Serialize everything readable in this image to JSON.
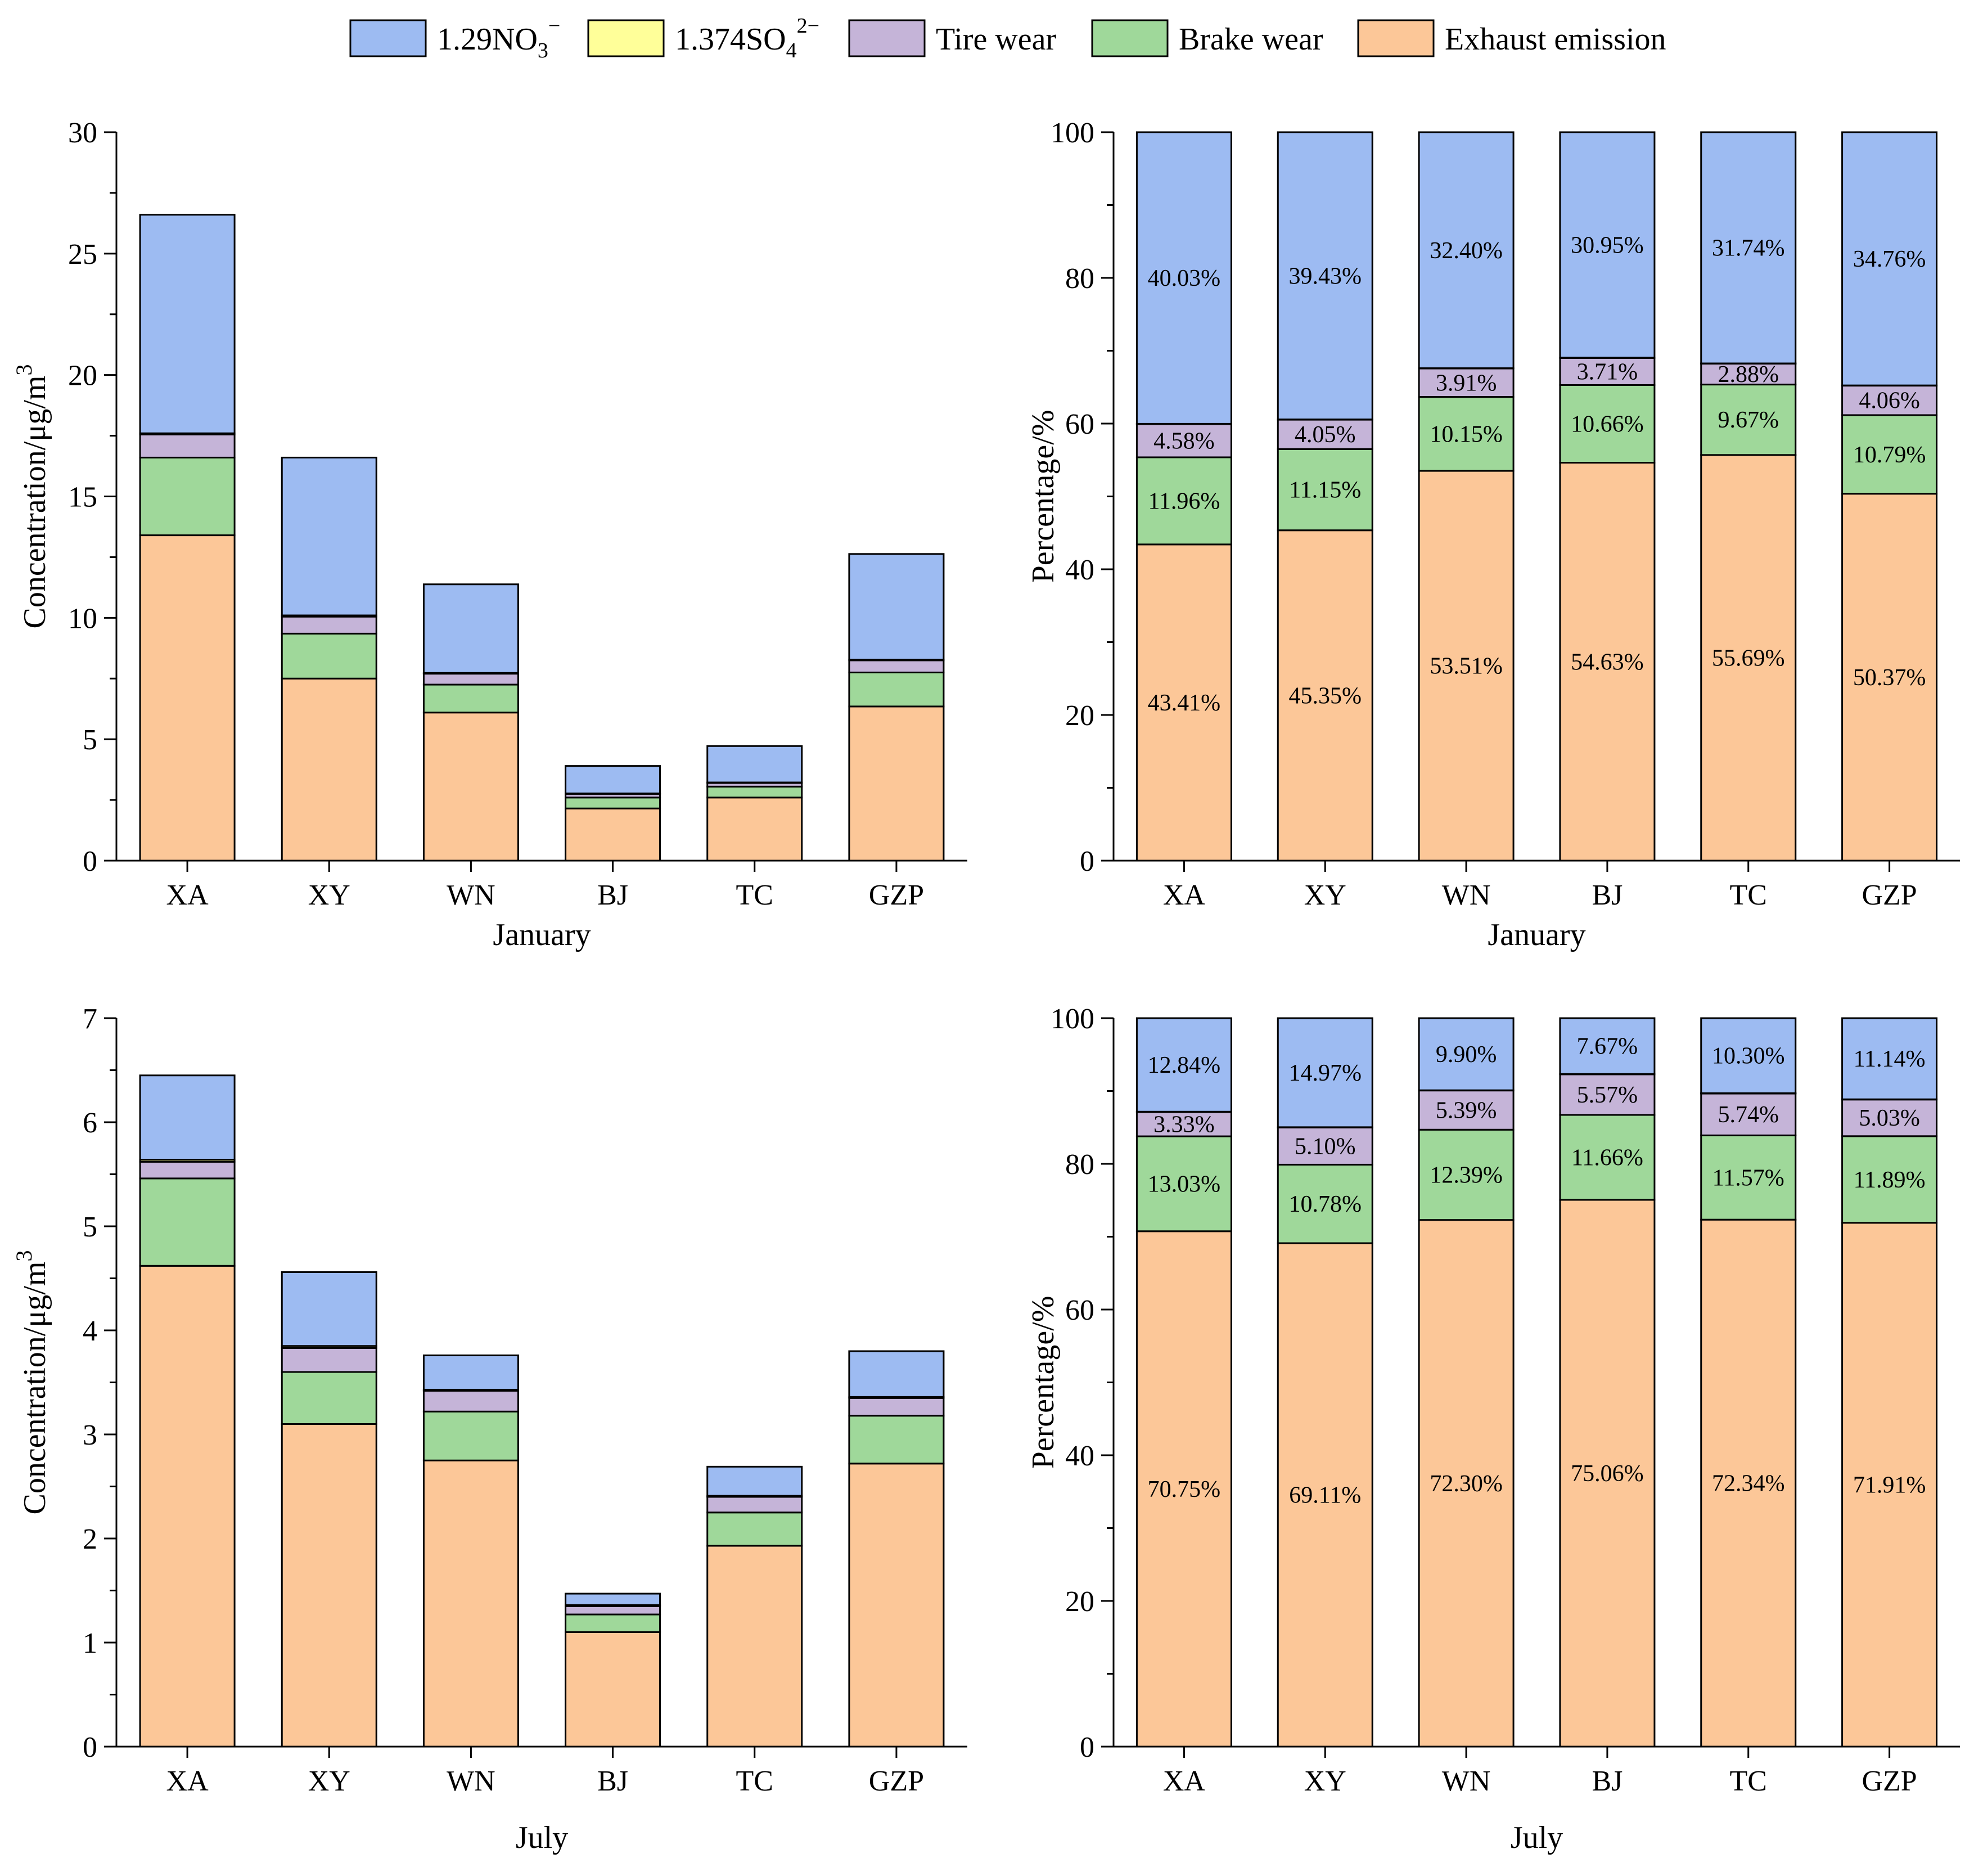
{
  "legend": {
    "items": [
      {
        "key": "no3",
        "label_main": "1.29NO",
        "label_sub": "3",
        "label_sup": "−",
        "color": "#9dbbf2"
      },
      {
        "key": "so4",
        "label_main": "1.374SO",
        "label_sub": "4",
        "label_sup": "2−",
        "color": "#ffff99"
      },
      {
        "key": "tire",
        "label_main": "Tire wear",
        "label_sub": "",
        "label_sup": "",
        "color": "#c5b4d8"
      },
      {
        "key": "brake",
        "label_main": "Brake wear",
        "label_sub": "",
        "label_sup": "",
        "color": "#9fd89a"
      },
      {
        "key": "exhaust",
        "label_main": "Exhaust emission",
        "label_sub": "",
        "label_sup": "",
        "color": "#fcc798"
      }
    ]
  },
  "chart_data": [
    {
      "type": "bar",
      "stacked": true,
      "panel": "jan-concentration",
      "xlabel": "January",
      "ylabel": "Concentration/μg/m",
      "ylabel_sup": "3",
      "ylim": [
        0,
        30
      ],
      "yticks": [
        "0",
        "5",
        "10",
        "15",
        "20",
        "25",
        "30"
      ],
      "categories": [
        "XA",
        "XY",
        "WN",
        "BJ",
        "TC",
        "GZP"
      ],
      "series": [
        {
          "key": "exhaust",
          "name": "Exhaust emission",
          "values": [
            13.4,
            7.5,
            6.1,
            2.15,
            2.6,
            6.35
          ]
        },
        {
          "key": "brake",
          "name": "Brake wear",
          "values": [
            3.2,
            1.85,
            1.15,
            0.45,
            0.45,
            1.4
          ]
        },
        {
          "key": "tire",
          "name": "Tire wear",
          "values": [
            0.95,
            0.7,
            0.45,
            0.15,
            0.15,
            0.5
          ]
        },
        {
          "key": "so4",
          "name": "1.374SO4 2−",
          "values": [
            0.05,
            0.05,
            0.03,
            0.02,
            0.02,
            0.03
          ]
        },
        {
          "key": "no3",
          "name": "1.29NO3 −",
          "values": [
            9.0,
            6.5,
            3.65,
            1.13,
            1.5,
            4.35
          ]
        }
      ]
    },
    {
      "type": "bar",
      "stacked": true,
      "panel": "jan-percentage",
      "xlabel": "January",
      "ylabel": "Percentage/%",
      "ylim": [
        0,
        100
      ],
      "yticks": [
        "0",
        "20",
        "40",
        "60",
        "80",
        "100"
      ],
      "categories": [
        "XA",
        "XY",
        "WN",
        "BJ",
        "TC",
        "GZP"
      ],
      "series": [
        {
          "key": "exhaust",
          "name": "Exhaust emission",
          "values": [
            43.41,
            45.35,
            53.51,
            54.63,
            55.69,
            50.37
          ],
          "labels": [
            "43.41%",
            "45.35%",
            "53.51%",
            "54.63%",
            "55.69%",
            "50.37%"
          ]
        },
        {
          "key": "brake",
          "name": "Brake wear",
          "values": [
            11.96,
            11.15,
            10.15,
            10.66,
            9.67,
            10.79
          ],
          "labels": [
            "11.96%",
            "11.15%",
            "10.15%",
            "10.66%",
            "9.67%",
            "10.79%"
          ]
        },
        {
          "key": "tire",
          "name": "Tire wear",
          "values": [
            4.58,
            4.05,
            3.91,
            3.71,
            2.88,
            4.06
          ],
          "labels": [
            "4.58%",
            "4.05%",
            "3.91%",
            "3.71%",
            "2.88%",
            "4.06%"
          ]
        },
        {
          "key": "so4",
          "name": "1.374SO4 2−",
          "values": [
            0.02,
            0.02,
            0.03,
            0.05,
            0.02,
            0.02
          ],
          "labels": null
        },
        {
          "key": "no3",
          "name": "1.29NO3 −",
          "values": [
            40.03,
            39.43,
            32.4,
            30.95,
            31.74,
            34.76
          ],
          "labels": [
            "40.03%",
            "39.43%",
            "32.40%",
            "30.95%",
            "31.74%",
            "34.76%"
          ]
        }
      ]
    },
    {
      "type": "bar",
      "stacked": true,
      "panel": "jul-concentration",
      "xlabel": "July",
      "ylabel": "Concentration/μg/m",
      "ylabel_sup": "3",
      "ylim": [
        0,
        7
      ],
      "yticks": [
        "0",
        "1",
        "2",
        "3",
        "4",
        "5",
        "6",
        "7"
      ],
      "categories": [
        "XA",
        "XY",
        "WN",
        "BJ",
        "TC",
        "GZP"
      ],
      "series": [
        {
          "key": "exhaust",
          "name": "Exhaust emission",
          "values": [
            4.62,
            3.1,
            2.75,
            1.1,
            1.93,
            2.72
          ]
        },
        {
          "key": "brake",
          "name": "Brake wear",
          "values": [
            0.84,
            0.5,
            0.47,
            0.17,
            0.32,
            0.46
          ]
        },
        {
          "key": "tire",
          "name": "Tire wear",
          "values": [
            0.16,
            0.23,
            0.2,
            0.08,
            0.15,
            0.17
          ]
        },
        {
          "key": "so4",
          "name": "1.374SO4 2−",
          "values": [
            0.02,
            0.02,
            0.01,
            0.01,
            0.01,
            0.01
          ]
        },
        {
          "key": "no3",
          "name": "1.29NO3 −",
          "values": [
            0.81,
            0.71,
            0.33,
            0.11,
            0.28,
            0.44
          ]
        }
      ]
    },
    {
      "type": "bar",
      "stacked": true,
      "panel": "jul-percentage",
      "xlabel": "July",
      "ylabel": "Percentage/%",
      "ylim": [
        0,
        100
      ],
      "yticks": [
        "0",
        "20",
        "40",
        "60",
        "80",
        "100"
      ],
      "categories": [
        "XA",
        "XY",
        "WN",
        "BJ",
        "TC",
        "GZP"
      ],
      "series": [
        {
          "key": "exhaust",
          "name": "Exhaust emission",
          "values": [
            70.75,
            69.11,
            72.3,
            75.06,
            72.34,
            71.91
          ],
          "labels": [
            "70.75%",
            "69.11%",
            "72.30%",
            "75.06%",
            "72.34%",
            "71.91%"
          ]
        },
        {
          "key": "brake",
          "name": "Brake wear",
          "values": [
            13.03,
            10.78,
            12.39,
            11.66,
            11.57,
            11.89
          ],
          "labels": [
            "13.03%",
            "10.78%",
            "12.39%",
            "11.66%",
            "11.57%",
            "11.89%"
          ]
        },
        {
          "key": "tire",
          "name": "Tire wear",
          "values": [
            3.33,
            5.1,
            5.39,
            5.57,
            5.74,
            5.03
          ],
          "labels": [
            "3.33%",
            "5.10%",
            "5.39%",
            "5.57%",
            "5.74%",
            "5.03%"
          ]
        },
        {
          "key": "so4",
          "name": "1.374SO4 2−",
          "values": [
            0.05,
            0.04,
            0.02,
            0.04,
            0.05,
            0.03
          ],
          "labels": null
        },
        {
          "key": "no3",
          "name": "1.29NO3 −",
          "values": [
            12.84,
            14.97,
            9.9,
            7.67,
            10.3,
            11.14
          ],
          "labels": [
            "12.84%",
            "14.97%",
            "9.90%",
            "7.67%",
            "10.30%",
            "11.14%"
          ]
        }
      ]
    }
  ]
}
